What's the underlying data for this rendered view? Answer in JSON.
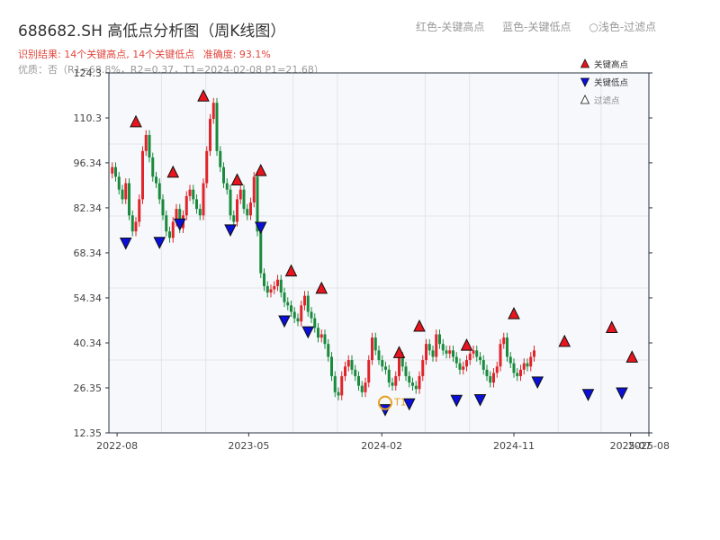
{
  "header": {
    "title": "688682.SH 高低点分析图（周K线图）",
    "legend_high": "红色-关键高点",
    "legend_low": "蓝色-关键低点",
    "legend_filtered": "○浅色-过滤点",
    "result": "识别结果: 14个关键高点, 14个关键低点",
    "accuracy": "准确度: 93.1%",
    "quality": "优质：否（R1=68.8%，R2=0.37，T1=2024-02-08 P1=21.68）"
  },
  "chart_data": {
    "type": "candlestick",
    "ylim": [
      12.35,
      124.3
    ],
    "x_range": [
      "2022-07-15",
      "2025-08-08"
    ],
    "yticks": [
      "124.3",
      "110.3",
      "96.34",
      "82.34",
      "68.34",
      "54.34",
      "40.34",
      "26.35",
      "12.35"
    ],
    "xticks": [
      {
        "label": "2022-08",
        "date": "2022-08-01"
      },
      {
        "label": "2023-05",
        "date": "2023-05-01"
      },
      {
        "label": "2024-02",
        "date": "2024-02-01"
      },
      {
        "label": "2024-11",
        "date": "2024-11-01"
      },
      {
        "label": "2025-07",
        "date": "2025-07-01"
      },
      {
        "label": "2025-08",
        "date": "2025-08-08"
      }
    ],
    "legend": [
      "关键高点",
      "关键低点",
      "过滤点"
    ],
    "up_color": "#e0242b",
    "down_color": "#1a8a3c",
    "high_marker_color": "#e8141e",
    "low_marker_color": "#0a10d8",
    "t1_color": "#e8a020",
    "closes": [
      95,
      92,
      88,
      85,
      90,
      80,
      75,
      78,
      85,
      100,
      105,
      98,
      92,
      90,
      85,
      80,
      75,
      73,
      78,
      82,
      76,
      80,
      86,
      88,
      85,
      82,
      80,
      90,
      100,
      110,
      115,
      100,
      95,
      90,
      88,
      80,
      78,
      85,
      88,
      82,
      80,
      84,
      92,
      75,
      62,
      58,
      56,
      57,
      58,
      60,
      56,
      53,
      52,
      50,
      48,
      47,
      52,
      55,
      50,
      48,
      45,
      42,
      43,
      40,
      36,
      30,
      25,
      24,
      30,
      33,
      35,
      32,
      30,
      27,
      25,
      28,
      35,
      42,
      38,
      35,
      33,
      32,
      28,
      27,
      30,
      36,
      33,
      30,
      28,
      27,
      26,
      30,
      35,
      40,
      38,
      36,
      43,
      40,
      38,
      37,
      38,
      36,
      34,
      32,
      33,
      35,
      37,
      38,
      36,
      35,
      32,
      30,
      28,
      31,
      33,
      40,
      42,
      36,
      34,
      31,
      30,
      32,
      34,
      33,
      36,
      38
    ],
    "key_highs": [
      {
        "date": "2022-09-09",
        "value": 107.0
      },
      {
        "date": "2022-11-25",
        "value": 91.3
      },
      {
        "date": "2023-01-27",
        "value": 115.0
      },
      {
        "date": "2023-04-07",
        "value": 88.9
      },
      {
        "date": "2023-05-26",
        "value": 91.8
      },
      {
        "date": "2023-07-28",
        "value": 60.6
      },
      {
        "date": "2023-09-29",
        "value": 55.2
      },
      {
        "date": "2024-03-08",
        "value": 35.2
      },
      {
        "date": "2024-04-19",
        "value": 43.4
      },
      {
        "date": "2024-07-26",
        "value": 37.5
      },
      {
        "date": "2024-11-01",
        "value": 47.3
      },
      {
        "date": "2025-02-14",
        "value": 38.7
      },
      {
        "date": "2025-05-23",
        "value": 43.0
      },
      {
        "date": "2025-07-04",
        "value": 33.8
      }
    ],
    "key_lows": [
      {
        "date": "2022-08-19",
        "value": 73.5
      },
      {
        "date": "2022-10-28",
        "value": 73.7
      },
      {
        "date": "2022-12-09",
        "value": 79.4
      },
      {
        "date": "2023-03-24",
        "value": 77.6
      },
      {
        "date": "2023-05-26",
        "value": 78.4
      },
      {
        "date": "2023-07-14",
        "value": 49.3
      },
      {
        "date": "2023-09-01",
        "value": 45.9
      },
      {
        "date": "2024-02-08",
        "value": 21.68
      },
      {
        "date": "2024-03-29",
        "value": 23.5
      },
      {
        "date": "2024-07-05",
        "value": 24.6
      },
      {
        "date": "2024-08-23",
        "value": 24.8
      },
      {
        "date": "2024-12-20",
        "value": 30.3
      },
      {
        "date": "2025-04-04",
        "value": 26.4
      },
      {
        "date": "2025-06-13",
        "value": 26.9
      }
    ],
    "t1": {
      "label": "T1",
      "date": "2024-02-08",
      "value": 21.68
    }
  }
}
